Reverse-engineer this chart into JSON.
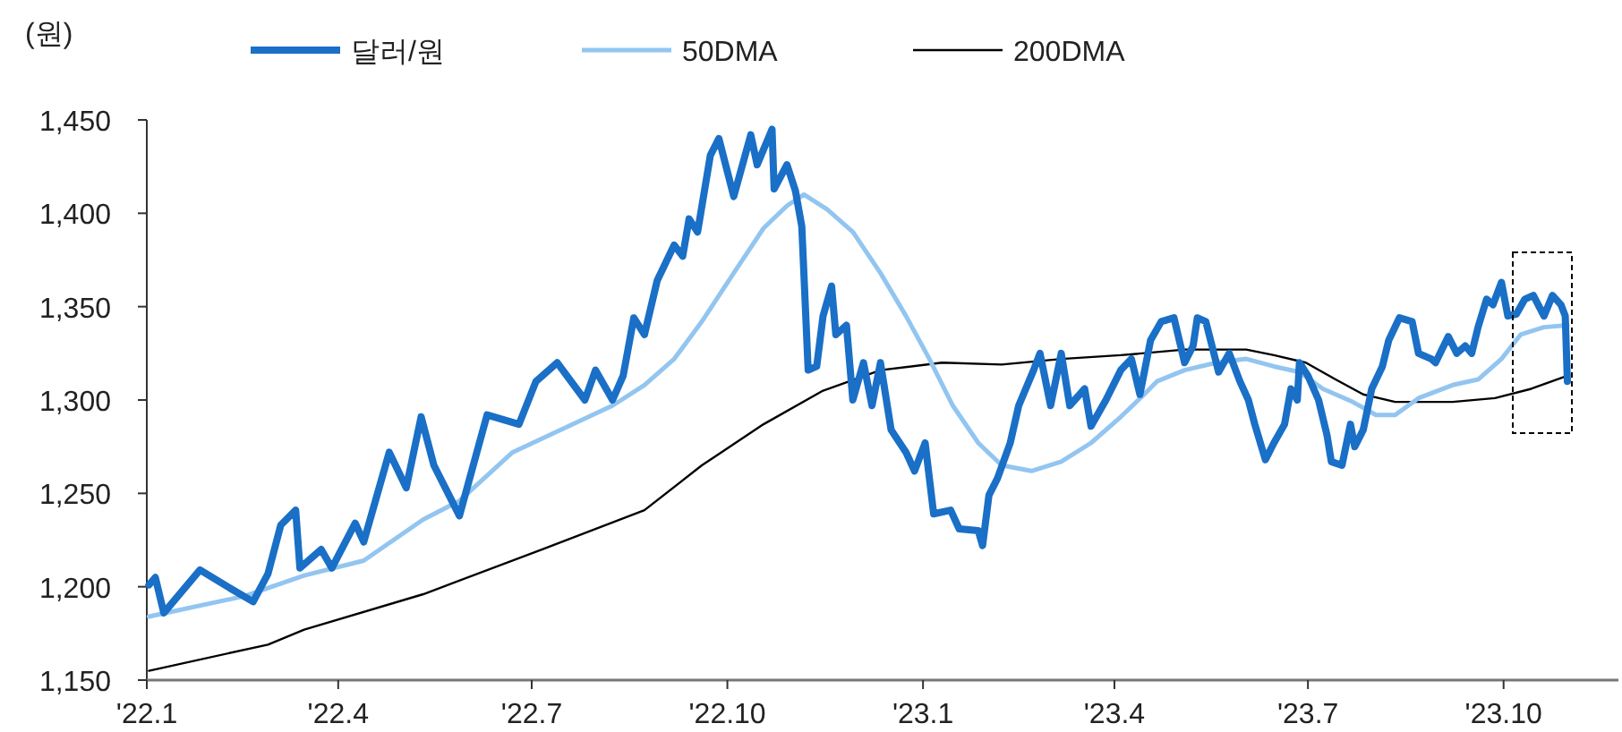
{
  "chart_data": {
    "type": "line",
    "ylabel": "(원)",
    "legend": "top",
    "xlim": [
      "2022-01-01",
      "2023-11-24"
    ],
    "ylim": [
      1150,
      1450
    ],
    "yticks": [
      {
        "value": 1150,
        "label": "1,150"
      },
      {
        "value": 1200,
        "label": "1,200"
      },
      {
        "value": 1250,
        "label": "1,250"
      },
      {
        "value": 1300,
        "label": "1,300"
      },
      {
        "value": 1350,
        "label": "1,350"
      },
      {
        "value": 1400,
        "label": "1,400"
      },
      {
        "value": 1450,
        "label": "1,450"
      }
    ],
    "xticks": [
      {
        "value": "2022-01-01",
        "label": "'22.1"
      },
      {
        "value": "2022-04-01",
        "label": "'22.4"
      },
      {
        "value": "2022-07-01",
        "label": "'22.7"
      },
      {
        "value": "2022-10-01",
        "label": "'22.10"
      },
      {
        "value": "2023-01-01",
        "label": "'23.1"
      },
      {
        "value": "2023-04-01",
        "label": "'23.4"
      },
      {
        "value": "2023-07-01",
        "label": "'23.7"
      },
      {
        "value": "2023-10-01",
        "label": "'23.10"
      }
    ],
    "series": [
      {
        "name": "달러/원",
        "color": "#1a6fc6",
        "x": [
          "2022-01-02",
          "2022-01-05",
          "2022-01-09",
          "2022-01-26",
          "2022-02-08",
          "2022-02-20",
          "2022-02-27",
          "2022-03-05",
          "2022-03-12",
          "2022-03-14",
          "2022-03-24",
          "2022-03-29",
          "2022-04-09",
          "2022-04-13",
          "2022-04-25",
          "2022-05-03",
          "2022-05-10",
          "2022-05-16",
          "2022-05-28",
          "2022-06-10",
          "2022-06-25",
          "2022-07-03",
          "2022-07-13",
          "2022-07-26",
          "2022-07-31",
          "2022-08-08",
          "2022-08-13",
          "2022-08-18",
          "2022-08-23",
          "2022-08-29",
          "2022-09-06",
          "2022-09-10",
          "2022-09-13",
          "2022-09-17",
          "2022-09-23",
          "2022-09-27",
          "2022-10-04",
          "2022-10-12",
          "2022-10-15",
          "2022-10-22",
          "2022-10-23",
          "2022-10-29",
          "2022-11-02",
          "2022-11-05",
          "2022-11-08",
          "2022-11-12",
          "2022-11-15",
          "2022-11-19",
          "2022-11-21",
          "2022-11-26",
          "2022-11-29",
          "2022-12-04",
          "2022-12-08",
          "2022-12-12",
          "2022-12-17",
          "2022-12-24",
          "2022-12-28",
          "2023-01-02",
          "2023-01-06",
          "2023-01-14",
          "2023-01-18",
          "2023-01-27",
          "2023-01-29",
          "2023-02-01",
          "2023-02-05",
          "2023-02-11",
          "2023-02-15",
          "2023-02-22",
          "2023-02-25",
          "2023-03-02",
          "2023-03-07",
          "2023-03-11",
          "2023-03-18",
          "2023-03-21",
          "2023-03-28",
          "2023-04-04",
          "2023-04-09",
          "2023-04-13",
          "2023-04-18",
          "2023-04-23",
          "2023-04-29",
          "2023-05-04",
          "2023-05-08",
          "2023-05-10",
          "2023-05-14",
          "2023-05-20",
          "2023-05-25",
          "2023-05-30",
          "2023-06-03",
          "2023-06-06",
          "2023-06-11",
          "2023-06-15",
          "2023-06-20",
          "2023-06-23",
          "2023-06-26",
          "2023-06-27",
          "2023-07-01",
          "2023-07-06",
          "2023-07-10",
          "2023-07-12",
          "2023-07-17",
          "2023-07-21",
          "2023-07-23",
          "2023-07-27",
          "2023-07-31",
          "2023-08-05",
          "2023-08-08",
          "2023-08-13",
          "2023-08-19",
          "2023-08-22",
          "2023-08-28",
          "2023-08-30",
          "2023-09-05",
          "2023-09-09",
          "2023-09-13",
          "2023-09-16",
          "2023-09-19",
          "2023-09-23",
          "2023-09-26",
          "2023-09-30",
          "2023-10-03",
          "2023-10-07",
          "2023-10-11",
          "2023-10-15",
          "2023-10-20",
          "2023-10-24",
          "2023-10-28",
          "2023-10-30",
          "2023-10-31"
        ],
        "values": [
          1201,
          1205,
          1186,
          1209,
          1200,
          1192,
          1207,
          1233,
          1241,
          1210,
          1220,
          1210,
          1234,
          1224,
          1272,
          1253,
          1291,
          1265,
          1238,
          1292,
          1287,
          1310,
          1320,
          1300,
          1316,
          1300,
          1313,
          1344,
          1335,
          1364,
          1383,
          1377,
          1397,
          1390,
          1431,
          1440,
          1409,
          1442,
          1426,
          1445,
          1413,
          1426,
          1412,
          1393,
          1316,
          1318,
          1345,
          1361,
          1335,
          1340,
          1300,
          1320,
          1297,
          1320,
          1284,
          1272,
          1262,
          1277,
          1239,
          1241,
          1231,
          1230,
          1222,
          1249,
          1258,
          1277,
          1297,
          1316,
          1325,
          1297,
          1325,
          1297,
          1306,
          1286,
          1300,
          1316,
          1322,
          1303,
          1332,
          1342,
          1344,
          1320,
          1329,
          1344,
          1342,
          1315,
          1325,
          1310,
          1300,
          1287,
          1268,
          1277,
          1287,
          1306,
          1300,
          1320,
          1313,
          1300,
          1281,
          1267,
          1265,
          1287,
          1275,
          1284,
          1306,
          1318,
          1332,
          1344,
          1342,
          1325,
          1322,
          1320,
          1334,
          1325,
          1329,
          1325,
          1339,
          1354,
          1351,
          1363,
          1345,
          1346,
          1354,
          1356,
          1345,
          1356,
          1351,
          1345,
          1310
        ]
      },
      {
        "name": "50DMA",
        "color": "#92c5f0",
        "x": [
          "2022-01-02",
          "2022-02-16",
          "2022-03-16",
          "2022-04-13",
          "2022-05-11",
          "2022-05-28",
          "2022-06-22",
          "2022-08-08",
          "2022-08-23",
          "2022-09-06",
          "2022-09-19",
          "2022-10-04",
          "2022-10-18",
          "2022-10-29",
          "2022-11-06",
          "2022-11-17",
          "2022-11-29",
          "2022-12-12",
          "2022-12-24",
          "2023-01-04",
          "2023-01-15",
          "2023-01-27",
          "2023-02-07",
          "2023-02-21",
          "2023-03-07",
          "2023-03-21",
          "2023-04-04",
          "2023-04-15",
          "2023-04-21",
          "2023-05-04",
          "2023-05-19",
          "2023-06-02",
          "2023-06-15",
          "2023-06-27",
          "2023-07-08",
          "2023-07-22",
          "2023-08-02",
          "2023-08-11",
          "2023-08-22",
          "2023-09-07",
          "2023-09-19",
          "2023-09-30",
          "2023-10-09",
          "2023-10-20",
          "2023-10-31"
        ],
        "values": [
          1184,
          1195,
          1206,
          1214,
          1236,
          1246,
          1272,
          1297,
          1308,
          1322,
          1342,
          1368,
          1392,
          1404,
          1410,
          1402,
          1390,
          1368,
          1345,
          1322,
          1297,
          1277,
          1265,
          1262,
          1267,
          1277,
          1291,
          1303,
          1310,
          1316,
          1320,
          1322,
          1318,
          1315,
          1306,
          1299,
          1292,
          1292,
          1301,
          1308,
          1311,
          1322,
          1335,
          1339,
          1340
        ]
      },
      {
        "name": "200DMA",
        "color": "#000000",
        "x": [
          "2022-01-02",
          "2022-02-27",
          "2022-03-16",
          "2022-05-11",
          "2022-07-06",
          "2022-08-23",
          "2022-09-19",
          "2022-10-18",
          "2022-11-15",
          "2022-12-12",
          "2023-01-10",
          "2023-02-07",
          "2023-03-07",
          "2023-04-04",
          "2023-05-04",
          "2023-06-02",
          "2023-06-15",
          "2023-06-30",
          "2023-07-14",
          "2023-07-27",
          "2023-08-11",
          "2023-09-07",
          "2023-09-27",
          "2023-10-14",
          "2023-10-31"
        ],
        "values": [
          1155,
          1169,
          1177,
          1196,
          1220,
          1241,
          1265,
          1287,
          1305,
          1316,
          1320,
          1319,
          1322,
          1324,
          1327,
          1327,
          1324,
          1320,
          1311,
          1303,
          1299,
          1299,
          1301,
          1306,
          1313
        ]
      }
    ]
  }
}
